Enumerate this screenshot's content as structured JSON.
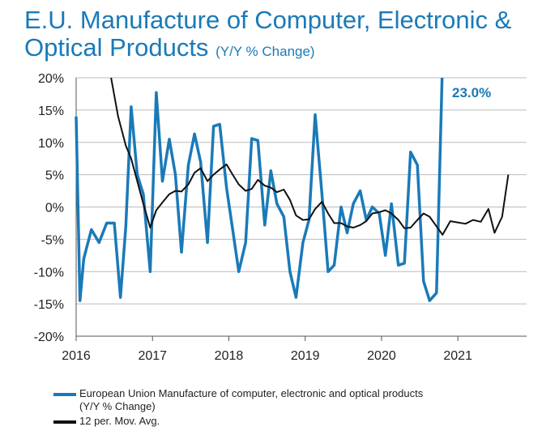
{
  "title": {
    "line1": "E.U. Manufacture of Computer, Electronic &",
    "line2": "Optical Products",
    "subtitle": "(Y/Y % Change)"
  },
  "colors": {
    "series_main": "#1a7ab8",
    "series_avg": "#111111",
    "grid": "#bbbbbb",
    "axis": "#555555",
    "annotation": "#1a7ab8"
  },
  "annotation": {
    "text": "23.0%"
  },
  "chart_data": {
    "type": "line",
    "title": "E.U. Manufacture of Computer, Electronic & Optical Products (Y/Y % Change)",
    "xlabel": "",
    "ylabel": "",
    "xlim": [
      2016.0,
      2021.9
    ],
    "ylim": [
      -20,
      20
    ],
    "yticks": [
      20,
      15,
      10,
      5,
      0,
      -5,
      -10,
      -15,
      -20
    ],
    "ytick_labels": [
      "20%",
      "15%",
      "10%",
      "5%",
      "0%",
      "-5%",
      "-10%",
      "-15%",
      "-20%"
    ],
    "xticks": [
      2016,
      2017,
      2018,
      2019,
      2020,
      2021
    ],
    "xtick_labels": [
      "2016",
      "2017",
      "2018",
      "2019",
      "2020",
      "2021"
    ],
    "grid": "horizontal",
    "series": [
      {
        "name": "European Union Manufacture of computer, electronic and optical products",
        "name_line2": "(Y/Y % Change)",
        "x": [
          2016.0,
          2016.05,
          2016.1,
          2016.2,
          2016.3,
          2016.4,
          2016.5,
          2016.58,
          2016.65,
          2016.72,
          2016.8,
          2016.88,
          2016.97,
          2017.05,
          2017.13,
          2017.22,
          2017.3,
          2017.38,
          2017.47,
          2017.55,
          2017.63,
          2017.72,
          2017.8,
          2017.88,
          2017.97,
          2018.05,
          2018.13,
          2018.22,
          2018.3,
          2018.38,
          2018.47,
          2018.55,
          2018.63,
          2018.72,
          2018.8,
          2018.88,
          2018.97,
          2019.05,
          2019.13,
          2019.22,
          2019.3,
          2019.38,
          2019.47,
          2019.55,
          2019.63,
          2019.72,
          2019.8,
          2019.88,
          2019.97,
          2020.05,
          2020.13,
          2020.22,
          2020.3,
          2020.38,
          2020.47,
          2020.55,
          2020.63,
          2020.72,
          2020.8
        ],
        "values": [
          14,
          -14.5,
          -8,
          -3.5,
          -5.5,
          -2.5,
          -2.5,
          -14,
          -3,
          15.5,
          5,
          2,
          -10,
          17.7,
          4,
          10.5,
          5,
          -7,
          6.5,
          11.3,
          7,
          -5.5,
          12.5,
          12.8,
          3,
          -3.5,
          -10,
          -5.5,
          10.6,
          10.3,
          -2.8,
          5.6,
          0.5,
          -1.5,
          -10,
          -14,
          -5.5,
          -2,
          14.3,
          2,
          -10,
          -9,
          0,
          -4,
          0.5,
          2.5,
          -2,
          0,
          -1,
          -7.5,
          0.5,
          -9,
          -8.7,
          8.5,
          6.5,
          -11.5,
          -14.5,
          -13.3,
          23
        ]
      },
      {
        "name": "12 per. Mov. Avg.",
        "x": [
          2016.45,
          2016.55,
          2016.65,
          2016.72,
          2016.8,
          2016.88,
          2016.97,
          2017.05,
          2017.13,
          2017.22,
          2017.3,
          2017.38,
          2017.47,
          2017.55,
          2017.63,
          2017.72,
          2017.8,
          2017.88,
          2017.97,
          2018.05,
          2018.13,
          2018.22,
          2018.3,
          2018.38,
          2018.47,
          2018.55,
          2018.63,
          2018.72,
          2018.8,
          2018.88,
          2018.97,
          2019.05,
          2019.13,
          2019.22,
          2019.3,
          2019.38,
          2019.47,
          2019.55,
          2019.63,
          2019.72,
          2019.8,
          2019.88,
          2019.97,
          2020.05,
          2020.13,
          2020.22,
          2020.3,
          2020.38,
          2020.47,
          2020.55,
          2020.63,
          2020.72,
          2020.8,
          2020.9,
          2021.0,
          2021.1,
          2021.2,
          2021.3,
          2021.4,
          2021.48,
          2021.58,
          2021.66
        ],
        "values": [
          20.5,
          14,
          9.5,
          7.5,
          4,
          0.5,
          -3.2,
          -0.5,
          0.7,
          2,
          2.5,
          2.4,
          3.5,
          5.3,
          6,
          4,
          5,
          5.8,
          6.6,
          5,
          3.5,
          2.5,
          2.8,
          4.2,
          3.3,
          3,
          2.3,
          2.7,
          1.1,
          -1.3,
          -2,
          -1.9,
          -0.3,
          0.8,
          -1,
          -2.5,
          -2.5,
          -3,
          -3.2,
          -2.8,
          -2.2,
          -1,
          -0.8,
          -0.5,
          -1,
          -2,
          -3.3,
          -3.2,
          -2,
          -1,
          -1.5,
          -3,
          -4.3,
          -2.2,
          -2.4,
          -2.6,
          -2,
          -2.3,
          -0.3,
          -4,
          -1.5,
          5
        ]
      }
    ],
    "legend": "bottom"
  }
}
